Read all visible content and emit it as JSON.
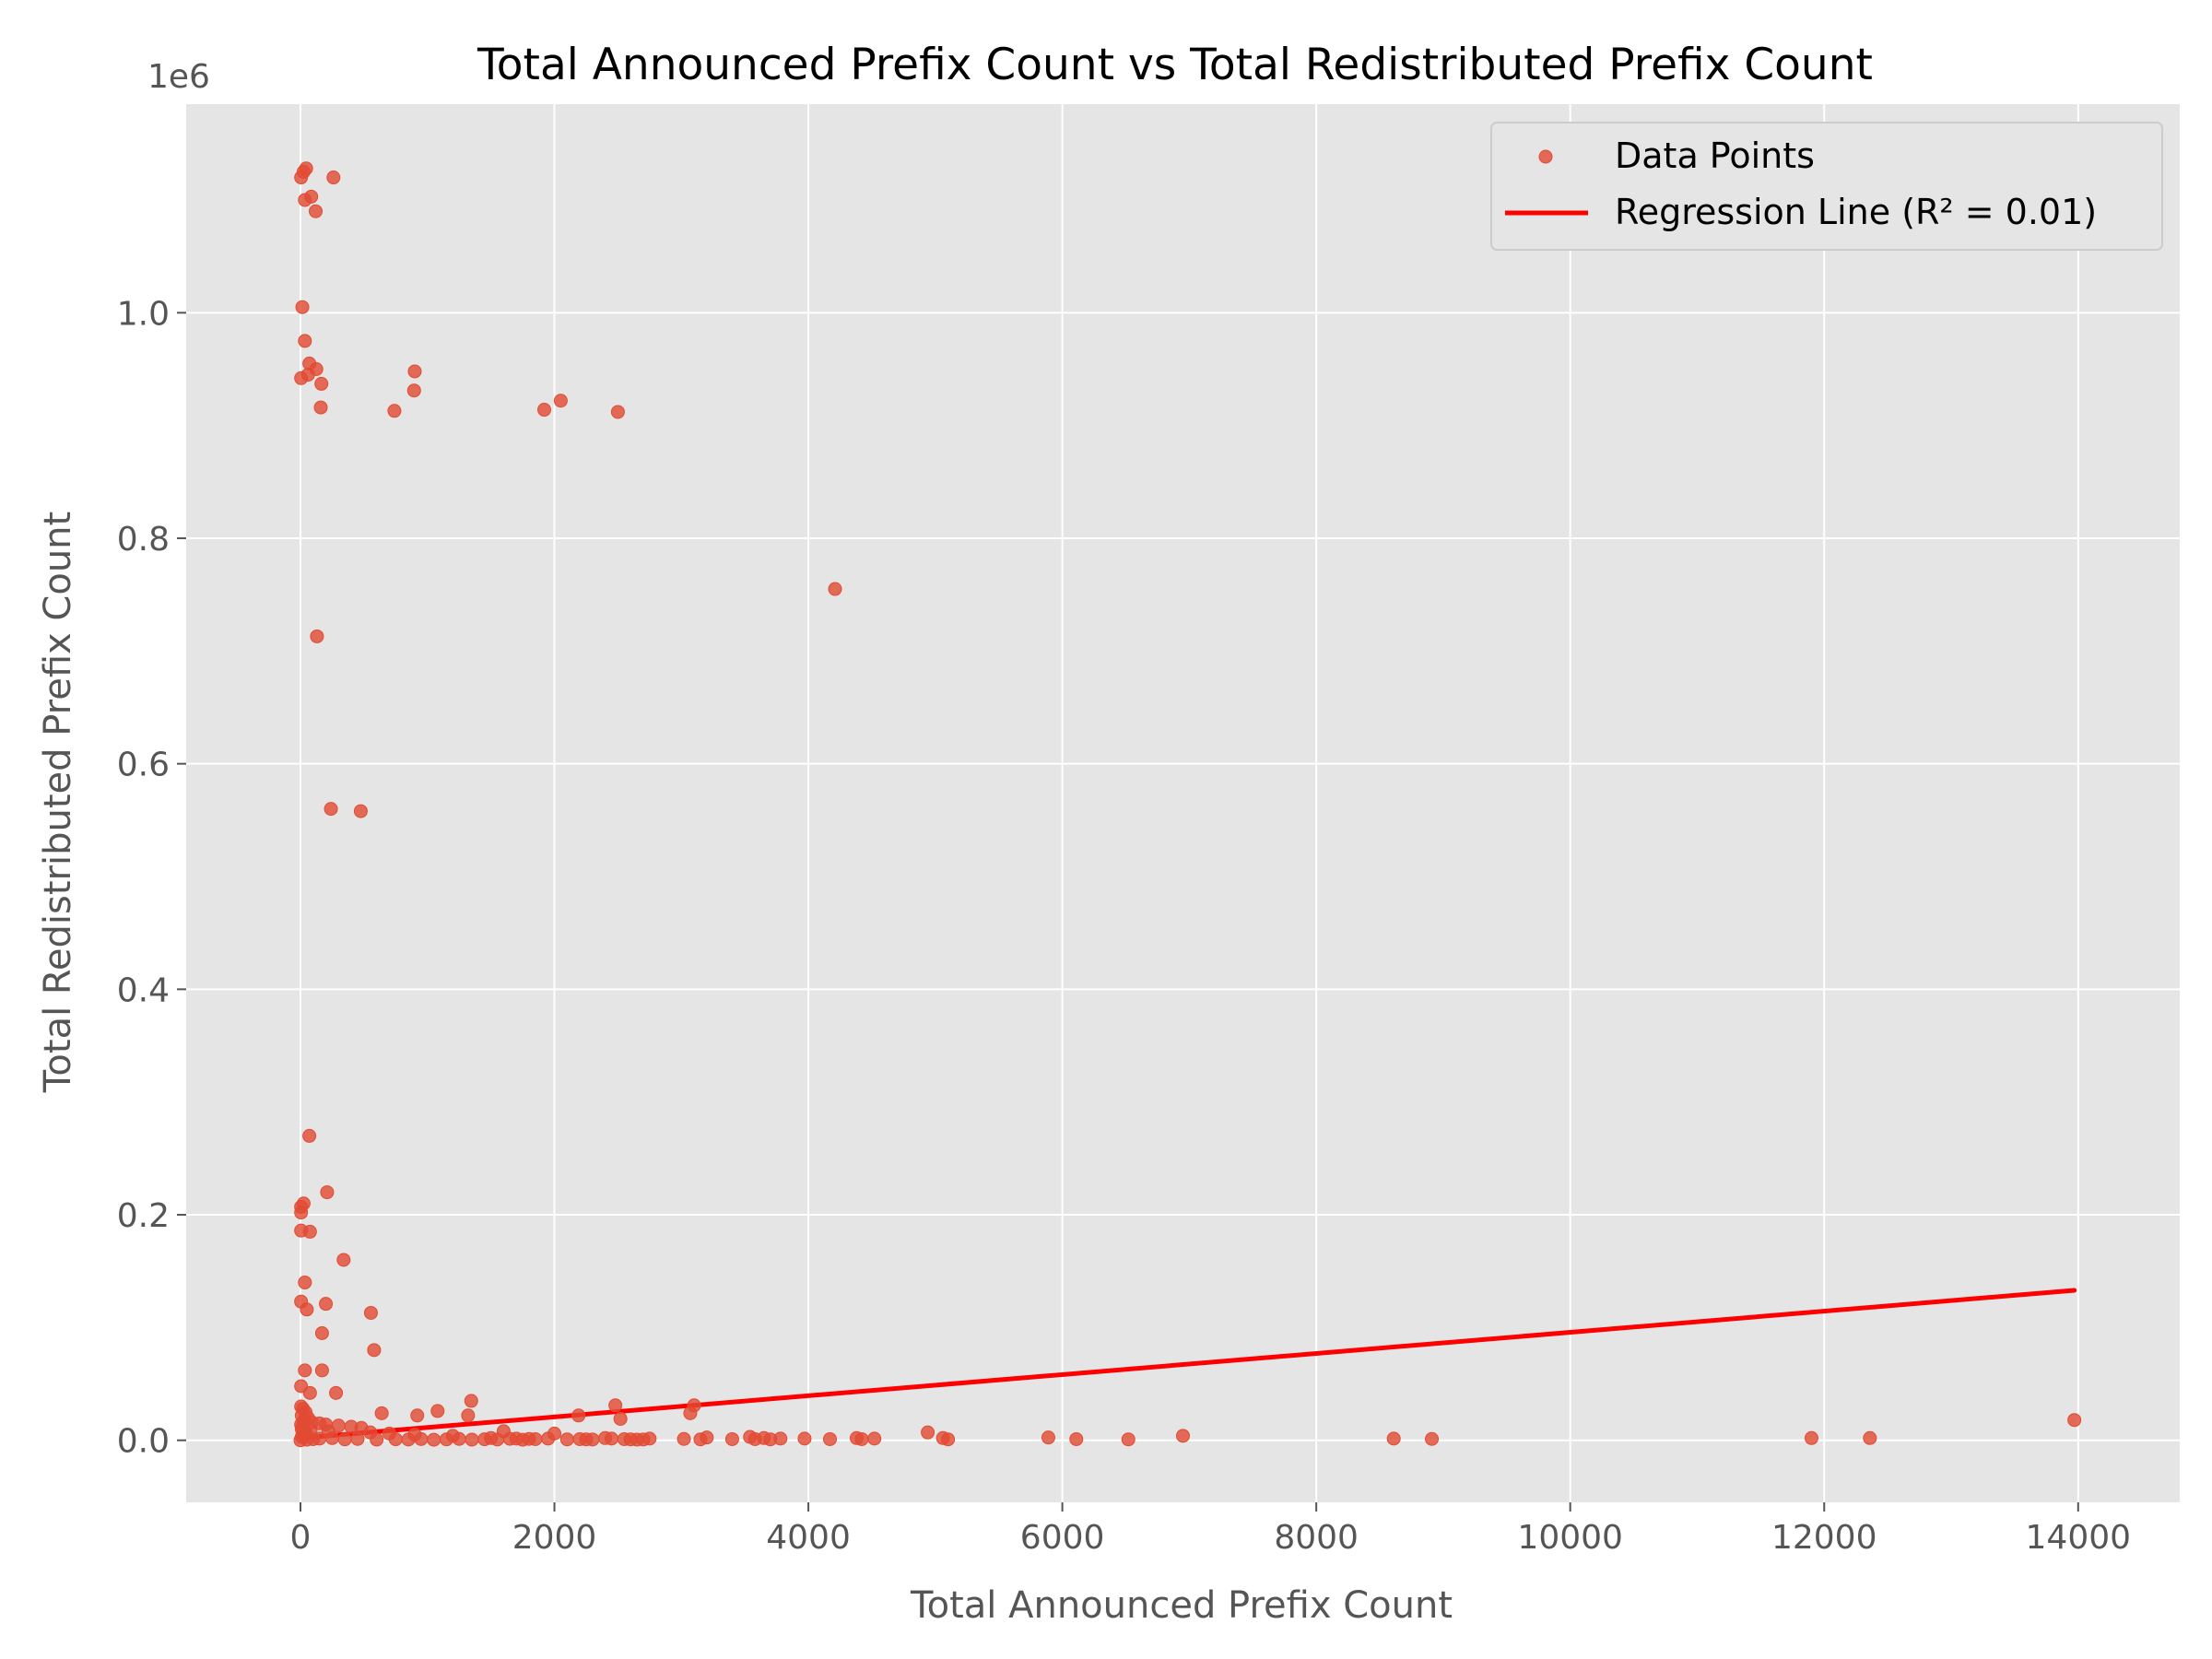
{
  "chart_data": {
    "type": "scatter",
    "title": "Total Announced Prefix Count vs Total Redistributed Prefix Count",
    "xlabel": "Total Announced Prefix Count",
    "ylabel": "Total Redistributed Prefix Count",
    "y_offset_label": "1e6",
    "xlim": [
      -900,
      14800
    ],
    "ylim": [
      -55000,
      1185000
    ],
    "x_ticks": [
      0,
      2000,
      4000,
      6000,
      8000,
      10000,
      12000,
      14000
    ],
    "x_tick_labels": [
      "0",
      "2000",
      "4000",
      "6000",
      "8000",
      "10000",
      "12000",
      "14000"
    ],
    "y_ticks": [
      0,
      200000,
      400000,
      600000,
      800000,
      1000000
    ],
    "y_tick_labels": [
      "0.0",
      "0.2",
      "0.4",
      "0.6",
      "0.8",
      "1.0"
    ],
    "grid": true,
    "legend_position": "top-right",
    "colors": {
      "background": "#E5E5E5",
      "grid": "#FFFFFF",
      "points": "#E24A33",
      "regression": "#FF0000"
    },
    "series": [
      {
        "name": "Data Points",
        "kind": "scatter",
        "points": [
          [
            5,
            1120000
          ],
          [
            25,
            1125000
          ],
          [
            45,
            1128000
          ],
          [
            260,
            1120000
          ],
          [
            85,
            1103000
          ],
          [
            35,
            1100000
          ],
          [
            120,
            1090000
          ],
          [
            15,
            1005000
          ],
          [
            35,
            975000
          ],
          [
            70,
            955000
          ],
          [
            125,
            950000
          ],
          [
            60,
            945000
          ],
          [
            5,
            942000
          ],
          [
            165,
            937000
          ],
          [
            160,
            916000
          ],
          [
            900,
            948000
          ],
          [
            895,
            931000
          ],
          [
            740,
            913000
          ],
          [
            1920,
            914000
          ],
          [
            2050,
            922000
          ],
          [
            2500,
            912000
          ],
          [
            4210,
            755000
          ],
          [
            130,
            713000
          ],
          [
            240,
            560000
          ],
          [
            475,
            558000
          ],
          [
            70,
            270000
          ],
          [
            210,
            220000
          ],
          [
            25,
            210000
          ],
          [
            5,
            207000
          ],
          [
            5,
            202000
          ],
          [
            5,
            186000
          ],
          [
            75,
            185000
          ],
          [
            340,
            160000
          ],
          [
            35,
            140000
          ],
          [
            5,
            123000
          ],
          [
            200,
            121000
          ],
          [
            50,
            116000
          ],
          [
            555,
            113000
          ],
          [
            170,
            95000
          ],
          [
            580,
            80000
          ],
          [
            35,
            62000
          ],
          [
            170,
            62000
          ],
          [
            5,
            48000
          ],
          [
            280,
            42000
          ],
          [
            75,
            42000
          ],
          [
            1345,
            35000
          ],
          [
            2480,
            31000
          ],
          [
            3100,
            31000
          ],
          [
            3070,
            24000
          ],
          [
            640,
            24000
          ],
          [
            1080,
            26000
          ],
          [
            920,
            22000
          ],
          [
            1320,
            22000
          ],
          [
            2190,
            22000
          ],
          [
            2520,
            19000
          ],
          [
            13970,
            18000
          ],
          [
            5,
            30000
          ],
          [
            20,
            28000
          ],
          [
            40,
            25000
          ],
          [
            10,
            22000
          ],
          [
            60,
            20000
          ],
          [
            30,
            18000
          ],
          [
            90,
            16000
          ],
          [
            150,
            15000
          ],
          [
            200,
            14000
          ],
          [
            300,
            13000
          ],
          [
            400,
            12000
          ],
          [
            480,
            11000
          ],
          [
            10,
            10000
          ],
          [
            80,
            9000
          ],
          [
            220,
            8000
          ],
          [
            550,
            7000
          ],
          [
            700,
            6000
          ],
          [
            900,
            5000
          ],
          [
            1200,
            4000
          ],
          [
            1600,
            8000
          ],
          [
            2000,
            6000
          ],
          [
            4940,
            7000
          ],
          [
            6950,
            4000
          ],
          [
            1500,
            2000
          ],
          [
            1700,
            1500
          ],
          [
            1800,
            1200
          ],
          [
            1850,
            1000
          ],
          [
            1950,
            1500
          ],
          [
            2100,
            800
          ],
          [
            2200,
            1000
          ],
          [
            2250,
            800
          ],
          [
            2300,
            700
          ],
          [
            2400,
            2000
          ],
          [
            2450,
            1500
          ],
          [
            2550,
            1000
          ],
          [
            2600,
            800
          ],
          [
            2650,
            600
          ],
          [
            2700,
            700
          ],
          [
            2750,
            1500
          ],
          [
            3020,
            1200
          ],
          [
            3150,
            800
          ],
          [
            3200,
            2500
          ],
          [
            3400,
            1000
          ],
          [
            3540,
            3000
          ],
          [
            3580,
            1000
          ],
          [
            3650,
            2000
          ],
          [
            3700,
            800
          ],
          [
            3780,
            1500
          ],
          [
            3970,
            1500
          ],
          [
            4170,
            1000
          ],
          [
            4380,
            2000
          ],
          [
            4420,
            1000
          ],
          [
            4520,
            1500
          ],
          [
            5060,
            2000
          ],
          [
            5100,
            800
          ],
          [
            5890,
            2500
          ],
          [
            6110,
            1000
          ],
          [
            6520,
            800
          ],
          [
            8610,
            1500
          ],
          [
            8910,
            1200
          ],
          [
            11900,
            2000
          ],
          [
            12360,
            2000
          ],
          [
            0,
            0
          ],
          [
            50,
            500
          ],
          [
            100,
            1000
          ],
          [
            150,
            1500
          ],
          [
            250,
            2000
          ],
          [
            350,
            800
          ],
          [
            450,
            1200
          ],
          [
            600,
            600
          ],
          [
            750,
            900
          ],
          [
            850,
            700
          ],
          [
            950,
            1100
          ],
          [
            1050,
            500
          ],
          [
            1150,
            800
          ],
          [
            1250,
            1200
          ],
          [
            1350,
            600
          ],
          [
            1450,
            900
          ],
          [
            1550,
            700
          ],
          [
            1650,
            1300
          ],
          [
            1750,
            500
          ],
          [
            10,
            3000
          ],
          [
            20,
            5000
          ],
          [
            30,
            8000
          ],
          [
            15,
            12000
          ],
          [
            5,
            14000
          ],
          [
            25,
            17000
          ],
          [
            45,
            6000
          ]
        ]
      },
      {
        "name": "Regression Line (R² = 0.01)",
        "kind": "line",
        "points": [
          [
            0,
            2000
          ],
          [
            13970,
            133000
          ]
        ]
      }
    ]
  }
}
